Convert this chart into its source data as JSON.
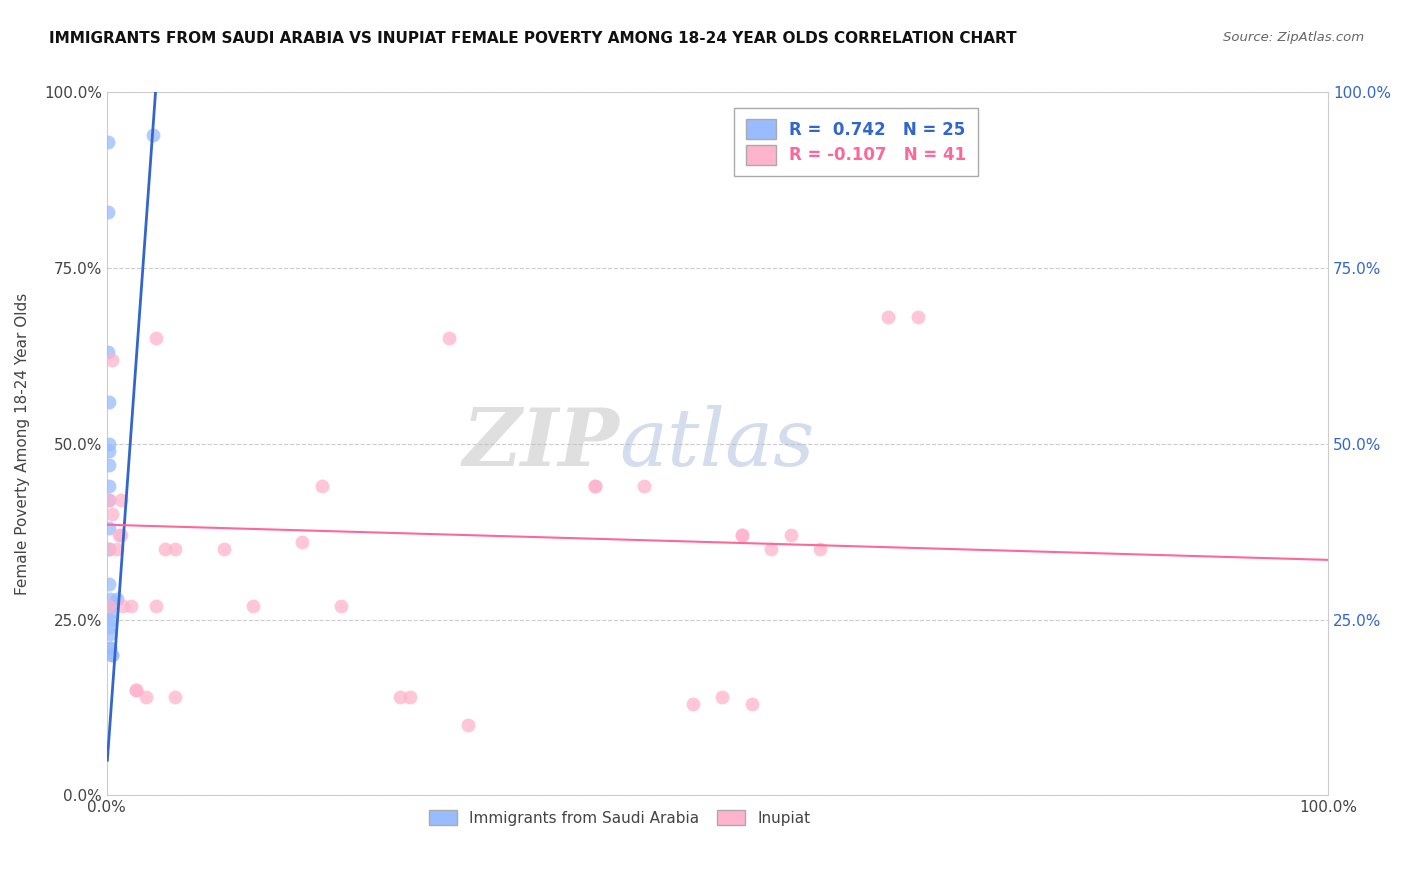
{
  "title": "IMMIGRANTS FROM SAUDI ARABIA VS INUPIAT FEMALE POVERTY AMONG 18-24 YEAR OLDS CORRELATION CHART",
  "source": "Source: ZipAtlas.com",
  "ylabel": "Female Poverty Among 18-24 Year Olds",
  "xlim": [
    0,
    1.0
  ],
  "ylim": [
    0,
    1.0
  ],
  "ytick_positions": [
    0.0,
    0.25,
    0.5,
    0.75,
    1.0
  ],
  "ytick_labels": [
    "0.0%",
    "25.0%",
    "50.0%",
    "75.0%",
    "100.0%"
  ],
  "right_ytick_positions": [
    0.25,
    0.5,
    0.75,
    1.0
  ],
  "right_ytick_labels": [
    "25.0%",
    "50.0%",
    "75.0%",
    "100.0%"
  ],
  "xtick_positions": [
    0.0,
    1.0
  ],
  "xtick_labels": [
    "0.0%",
    "100.0%"
  ],
  "legend_label1": "R =  0.742   N = 25",
  "legend_label2": "R = -0.107   N = 41",
  "color_blue": "#99BBFF",
  "color_pink": "#FFB3CC",
  "color_blue_line": "#3366CC",
  "color_pink_line": "#FF6699",
  "watermark_zip": "ZIP",
  "watermark_atlas": "atlas",
  "blue_scatter_x": [
    0.001,
    0.001,
    0.001,
    0.002,
    0.002,
    0.002,
    0.002,
    0.002,
    0.002,
    0.002,
    0.002,
    0.002,
    0.003,
    0.003,
    0.003,
    0.003,
    0.003,
    0.003,
    0.003,
    0.003,
    0.003,
    0.004,
    0.004,
    0.008,
    0.038
  ],
  "blue_scatter_y": [
    0.93,
    0.83,
    0.63,
    0.56,
    0.5,
    0.49,
    0.47,
    0.44,
    0.42,
    0.38,
    0.35,
    0.3,
    0.28,
    0.27,
    0.27,
    0.26,
    0.25,
    0.24,
    0.23,
    0.21,
    0.21,
    0.2,
    0.2,
    0.28,
    0.94
  ],
  "pink_scatter_x": [
    0.002,
    0.002,
    0.002,
    0.004,
    0.004,
    0.008,
    0.01,
    0.012,
    0.012,
    0.013,
    0.02,
    0.024,
    0.024,
    0.032,
    0.04,
    0.04,
    0.048,
    0.056,
    0.056,
    0.096,
    0.12,
    0.16,
    0.176,
    0.192,
    0.24,
    0.248,
    0.28,
    0.296,
    0.4,
    0.4,
    0.44,
    0.48,
    0.504,
    0.52,
    0.52,
    0.528,
    0.544,
    0.56,
    0.584,
    0.64,
    0.664
  ],
  "pink_scatter_y": [
    0.42,
    0.35,
    0.27,
    0.62,
    0.4,
    0.35,
    0.37,
    0.37,
    0.42,
    0.27,
    0.27,
    0.15,
    0.15,
    0.14,
    0.65,
    0.27,
    0.35,
    0.35,
    0.14,
    0.35,
    0.27,
    0.36,
    0.44,
    0.27,
    0.14,
    0.14,
    0.65,
    0.1,
    0.44,
    0.44,
    0.44,
    0.13,
    0.14,
    0.37,
    0.37,
    0.13,
    0.35,
    0.37,
    0.35,
    0.68,
    0.68
  ],
  "blue_line_x": [
    0.0005,
    0.042
  ],
  "blue_line_y": [
    0.05,
    1.05
  ],
  "pink_line_x": [
    0.0,
    1.0
  ],
  "pink_line_y": [
    0.385,
    0.335
  ],
  "bottom_legend_label1": "Immigrants from Saudi Arabia",
  "bottom_legend_label2": "Inupiat"
}
